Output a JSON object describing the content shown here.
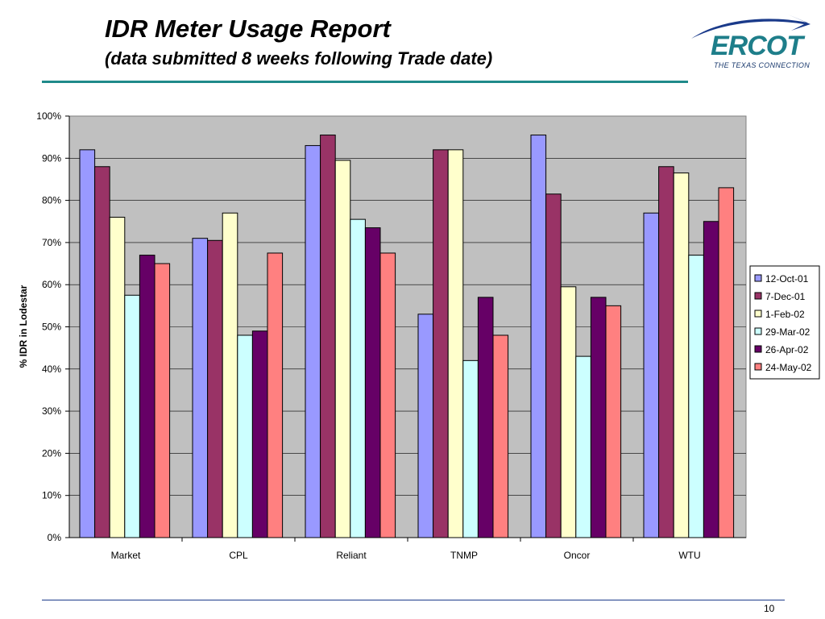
{
  "slide": {
    "title": "IDR Meter Usage Report",
    "subtitle": "(data submitted 8 weeks following Trade date)",
    "page_number": "10",
    "accent_color": "#1f8a8a"
  },
  "logo": {
    "text": "ERCOT",
    "tagline": "THE TEXAS CONNECTION"
  },
  "chart_data": {
    "type": "bar",
    "title": "",
    "xlabel": "",
    "ylabel": "% IDR in Lodestar",
    "ylim": [
      0,
      100
    ],
    "yticks": [
      "0%",
      "10%",
      "20%",
      "30%",
      "40%",
      "50%",
      "60%",
      "70%",
      "80%",
      "90%",
      "100%"
    ],
    "grid": true,
    "legend_position": "right",
    "plot_background": "#c0c0c0",
    "categories": [
      "Market",
      "CPL",
      "Reliant",
      "TNMP",
      "Oncor",
      "WTU"
    ],
    "series": [
      {
        "name": "12-Oct-01",
        "color": "#9999ff",
        "values": [
          92,
          71,
          93,
          53,
          95.5,
          77
        ]
      },
      {
        "name": "7-Dec-01",
        "color": "#993366",
        "values": [
          88,
          70.5,
          95.5,
          92,
          81.5,
          88
        ]
      },
      {
        "name": "1-Feb-02",
        "color": "#ffffcc",
        "values": [
          76,
          77,
          89.5,
          92,
          59.5,
          86.5
        ]
      },
      {
        "name": "29-Mar-02",
        "color": "#ccffff",
        "values": [
          57.5,
          48,
          75.5,
          42,
          43,
          67
        ]
      },
      {
        "name": "26-Apr-02",
        "color": "#660066",
        "values": [
          67,
          49,
          73.5,
          57,
          57,
          75
        ]
      },
      {
        "name": "24-May-02",
        "color": "#ff8080",
        "values": [
          65,
          67.5,
          67.5,
          48,
          55,
          83
        ]
      }
    ]
  }
}
